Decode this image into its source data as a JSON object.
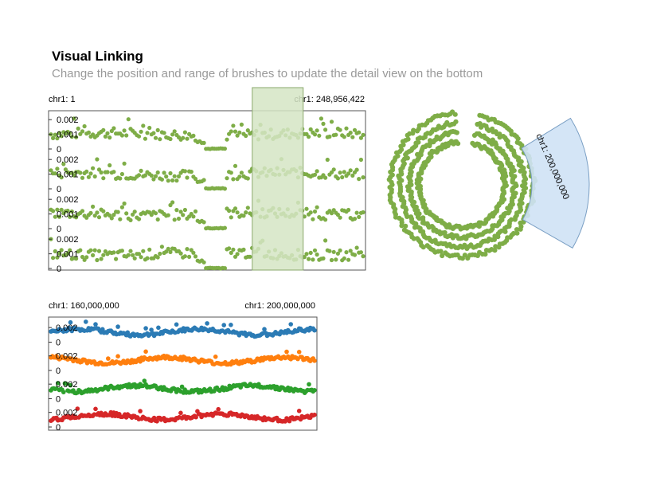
{
  "header": {
    "title": "Visual Linking",
    "subtitle": "Change the position and range of brushes to update the detail view on the bottom"
  },
  "colors": {
    "overview_point": "#7ead47",
    "overview_brush_fill": "#d5e5c4",
    "overview_brush_stroke": "#8aa86c",
    "circular_brush_fill": "#cfe2f5",
    "circular_brush_stroke": "#7a9fc4",
    "detail_series": [
      "#2b7bb5",
      "#ff7f0e",
      "#2ca02c",
      "#d62728"
    ]
  },
  "chart_data": [
    {
      "type": "scatter",
      "id": "overview-linear",
      "x_start_label": "chr1: 1",
      "x_end_label": "chr1: 248,956,422",
      "x_domain": [
        1,
        248956422
      ],
      "rows": 4,
      "y_ticks": [
        "0.002",
        "0.001",
        "0"
      ],
      "ylim": [
        0,
        0.0025
      ],
      "brush": {
        "start": 160000000,
        "end": 200000000
      }
    },
    {
      "type": "scatter",
      "id": "overview-circular",
      "rings": 4,
      "brush_label": "chr1: 200,000,000",
      "brush": {
        "start": 160000000,
        "end": 200000000
      }
    },
    {
      "type": "scatter",
      "id": "detail-linear",
      "x_start_label": "chr1: 160,000,000",
      "x_end_label": "chr1: 200,000,000",
      "x_domain": [
        160000000,
        200000000
      ],
      "rows": 4,
      "y_ticks": [
        "0.002",
        "0"
      ],
      "ylim": [
        0,
        0.003
      ]
    }
  ]
}
